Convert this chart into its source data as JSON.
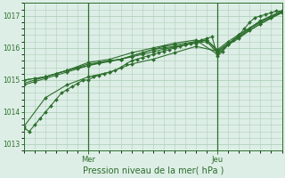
{
  "bg_color": "#ddeee6",
  "grid_color": "#b0cfbb",
  "line_color": "#2d6e2d",
  "text_color": "#2d6e2d",
  "xlabel": "Pression niveau de la mer( hPa )",
  "ylim": [
    1012.8,
    1017.4
  ],
  "yticks": [
    1013,
    1014,
    1015,
    1016,
    1017
  ],
  "xlim": [
    0,
    48
  ],
  "mer_x": 12,
  "jeu_x": 36,
  "xtick_labels": [
    "Mer",
    "Jeu"
  ],
  "series": [
    {
      "x": [
        0,
        1,
        2,
        3,
        4,
        5,
        6,
        7,
        8,
        9,
        10,
        11,
        12,
        13,
        14,
        15,
        16,
        17,
        18,
        19,
        20,
        21,
        22,
        23,
        24,
        25,
        26,
        27,
        28,
        29,
        30,
        31,
        32,
        33,
        34,
        35,
        36,
        37,
        38,
        39,
        40,
        41,
        42,
        43,
        44,
        45,
        46,
        47,
        48
      ],
      "y": [
        1013.5,
        1013.4,
        1013.6,
        1013.8,
        1014.0,
        1014.2,
        1014.4,
        1014.6,
        1014.7,
        1014.8,
        1014.9,
        1015.0,
        1015.0,
        1015.1,
        1015.15,
        1015.2,
        1015.25,
        1015.3,
        1015.4,
        1015.5,
        1015.6,
        1015.65,
        1015.7,
        1015.75,
        1015.8,
        1015.85,
        1015.9,
        1015.95,
        1016.0,
        1016.05,
        1016.1,
        1016.15,
        1016.2,
        1016.25,
        1016.3,
        1016.35,
        1015.75,
        1015.9,
        1016.1,
        1016.25,
        1016.4,
        1016.6,
        1016.8,
        1016.95,
        1017.0,
        1017.05,
        1017.1,
        1017.15,
        1017.15
      ]
    },
    {
      "x": [
        0,
        2,
        4,
        6,
        8,
        10,
        12,
        14,
        16,
        18,
        20,
        22,
        24,
        26,
        28,
        30,
        32,
        34,
        36,
        38,
        40,
        42,
        44,
        46,
        48
      ],
      "y": [
        1014.85,
        1014.95,
        1015.05,
        1015.15,
        1015.25,
        1015.35,
        1015.45,
        1015.55,
        1015.6,
        1015.65,
        1015.75,
        1015.85,
        1015.95,
        1016.0,
        1016.05,
        1016.1,
        1016.15,
        1016.2,
        1015.85,
        1016.1,
        1016.3,
        1016.55,
        1016.75,
        1016.95,
        1017.1
      ]
    },
    {
      "x": [
        0,
        2,
        4,
        6,
        8,
        10,
        12,
        14,
        16,
        18,
        20,
        22,
        24,
        26,
        28,
        30,
        32,
        34,
        36,
        38,
        40,
        42,
        44,
        46,
        48
      ],
      "y": [
        1014.9,
        1015.0,
        1015.1,
        1015.2,
        1015.3,
        1015.4,
        1015.5,
        1015.55,
        1015.6,
        1015.65,
        1015.75,
        1015.85,
        1015.95,
        1016.05,
        1016.1,
        1016.15,
        1016.2,
        1016.25,
        1015.9,
        1016.15,
        1016.35,
        1016.6,
        1016.8,
        1016.98,
        1017.12
      ]
    },
    {
      "x": [
        0,
        2,
        4,
        6,
        8,
        10,
        12,
        14,
        16,
        18,
        20,
        22,
        24,
        26,
        28,
        30,
        32,
        34,
        36,
        38,
        40,
        42,
        44,
        46,
        48
      ],
      "y": [
        1015.0,
        1015.05,
        1015.1,
        1015.2,
        1015.3,
        1015.38,
        1015.45,
        1015.52,
        1015.58,
        1015.65,
        1015.72,
        1015.8,
        1015.88,
        1015.96,
        1016.03,
        1016.1,
        1016.18,
        1016.25,
        1015.95,
        1016.2,
        1016.42,
        1016.62,
        1016.82,
        1017.0,
        1017.15
      ]
    },
    {
      "x": [
        0,
        4,
        8,
        12,
        16,
        20,
        24,
        28,
        32,
        36,
        40,
        44,
        48
      ],
      "y": [
        1015.0,
        1015.1,
        1015.3,
        1015.55,
        1015.65,
        1015.85,
        1016.0,
        1016.15,
        1016.25,
        1015.8,
        1016.4,
        1016.85,
        1017.15
      ]
    },
    {
      "x": [
        0,
        4,
        8,
        12,
        16,
        20,
        24,
        28,
        32,
        36,
        40,
        44,
        48
      ],
      "y": [
        1013.55,
        1014.45,
        1014.85,
        1015.1,
        1015.25,
        1015.5,
        1015.65,
        1015.85,
        1016.05,
        1015.9,
        1016.35,
        1016.75,
        1017.1
      ]
    }
  ]
}
